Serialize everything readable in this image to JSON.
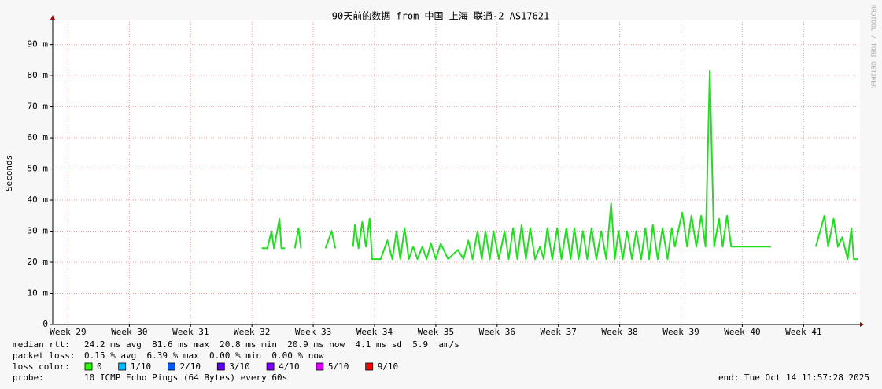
{
  "chart_data": {
    "type": "line",
    "title": "90天前的数据 from 中国 上海 联通-2 AS17621",
    "y_label": "Seconds",
    "watermark": "RRDTOOL / TOBI OETIKER",
    "color": "#22dd22",
    "grid": true,
    "ylim": [
      0,
      98
    ],
    "yticks": [
      0,
      {
        "value": 10,
        "label": "10 m"
      },
      {
        "value": 20,
        "label": "20 m"
      },
      {
        "value": 30,
        "label": "30 m"
      },
      {
        "value": 40,
        "label": "40 m"
      },
      {
        "value": 50,
        "label": "50 m"
      },
      {
        "value": 60,
        "label": "60 m"
      },
      {
        "value": 70,
        "label": "70 m"
      },
      {
        "value": 80,
        "label": "80 m"
      },
      {
        "value": 90,
        "label": "90 m"
      }
    ],
    "xlim": [
      28.75,
      41.92
    ],
    "xticks": [
      {
        "value": 29,
        "label": "Week 29"
      },
      {
        "value": 30,
        "label": "Week 30"
      },
      {
        "value": 31,
        "label": "Week 31"
      },
      {
        "value": 32,
        "label": "Week 32"
      },
      {
        "value": 33,
        "label": "Week 33"
      },
      {
        "value": 34,
        "label": "Week 34"
      },
      {
        "value": 35,
        "label": "Week 35"
      },
      {
        "value": 36,
        "label": "Week 36"
      },
      {
        "value": 37,
        "label": "Week 37"
      },
      {
        "value": 38,
        "label": "Week 38"
      },
      {
        "value": 39,
        "label": "Week 39"
      },
      {
        "value": 40,
        "label": "Week 40"
      },
      {
        "value": 41,
        "label": "Week 41"
      }
    ],
    "x": [
      32.16,
      32.25,
      32.32,
      32.36,
      32.45,
      32.48,
      32.54,
      32.6,
      32.7,
      32.76,
      32.8,
      32.9,
      33.2,
      33.3,
      33.36,
      33.5,
      33.65,
      33.68,
      33.74,
      33.8,
      33.86,
      33.92,
      33.96,
      34.1,
      34.21,
      34.29,
      34.36,
      34.42,
      34.49,
      34.56,
      34.63,
      34.7,
      34.78,
      34.85,
      34.92,
      35.0,
      35.08,
      35.2,
      35.36,
      35.45,
      35.53,
      35.6,
      35.68,
      35.75,
      35.81,
      35.88,
      35.94,
      36.03,
      36.12,
      36.19,
      36.26,
      36.33,
      36.4,
      36.47,
      36.54,
      36.62,
      36.7,
      36.76,
      36.82,
      36.9,
      36.98,
      37.05,
      37.13,
      37.2,
      37.26,
      37.33,
      37.4,
      37.47,
      37.54,
      37.62,
      37.7,
      37.78,
      37.86,
      37.92,
      37.98,
      38.05,
      38.12,
      38.2,
      38.27,
      38.35,
      38.42,
      38.48,
      38.54,
      38.62,
      38.7,
      38.78,
      38.85,
      38.9,
      39.02,
      39.1,
      39.17,
      39.25,
      39.33,
      39.4,
      39.47,
      39.54,
      39.62,
      39.68,
      39.75,
      39.82,
      40.1,
      40.47,
      40.55,
      41.2,
      41.34,
      41.4,
      41.49,
      41.56,
      41.63,
      41.72,
      41.78,
      41.82,
      41.88
    ],
    "values": [
      24.5,
      24.5,
      30,
      24.5,
      34,
      24.5,
      24.5,
      null,
      24.5,
      31,
      24.5,
      null,
      24.5,
      30,
      24.5,
      null,
      25,
      32,
      24.5,
      33,
      25,
      34,
      21,
      21,
      27,
      21,
      30,
      21,
      31,
      21,
      25,
      21,
      25,
      21,
      26,
      21,
      26,
      21,
      24,
      21,
      27,
      21,
      30,
      21,
      30,
      21,
      30,
      21,
      30,
      21,
      31,
      21,
      32,
      21,
      31,
      21,
      25,
      21,
      31,
      21,
      31,
      21,
      31,
      21,
      31,
      21,
      30,
      21,
      31,
      21,
      30,
      21,
      39,
      21,
      30,
      21,
      30,
      21,
      30,
      21,
      31,
      21,
      32,
      21,
      31,
      21,
      31,
      25,
      36,
      25,
      35,
      25,
      35,
      25,
      81.6,
      25,
      34,
      25,
      35,
      25,
      25,
      25,
      null,
      25,
      35,
      25,
      34,
      25,
      28,
      21,
      31,
      21,
      21
    ],
    "stats": [
      {
        "label": "median rtt:",
        "text": "24.2 ms avg  81.6 ms max  20.8 ms min  20.9 ms now  4.1 ms sd  5.9  am/s"
      },
      {
        "label": "packet loss:",
        "text": "0.15 % avg  6.39 % max  0.00 % min  0.00 % now"
      }
    ],
    "loss_label": "loss color:",
    "loss_colors": [
      {
        "name": "0",
        "color": "#26ff00"
      },
      {
        "name": "1/10",
        "color": "#00b8ff"
      },
      {
        "name": "2/10",
        "color": "#0059ff"
      },
      {
        "name": "3/10",
        "color": "#5e00ff"
      },
      {
        "name": "4/10",
        "color": "#7e00ff"
      },
      {
        "name": "5/10",
        "color": "#dd00ff"
      },
      {
        "name": "9/10",
        "color": "#ff0000"
      }
    ],
    "probe_label": "probe:",
    "probe": "10 ICMP Echo Pings (64 Bytes) every 60s",
    "end": "end: Tue Oct 14 11:57:28 2025"
  }
}
